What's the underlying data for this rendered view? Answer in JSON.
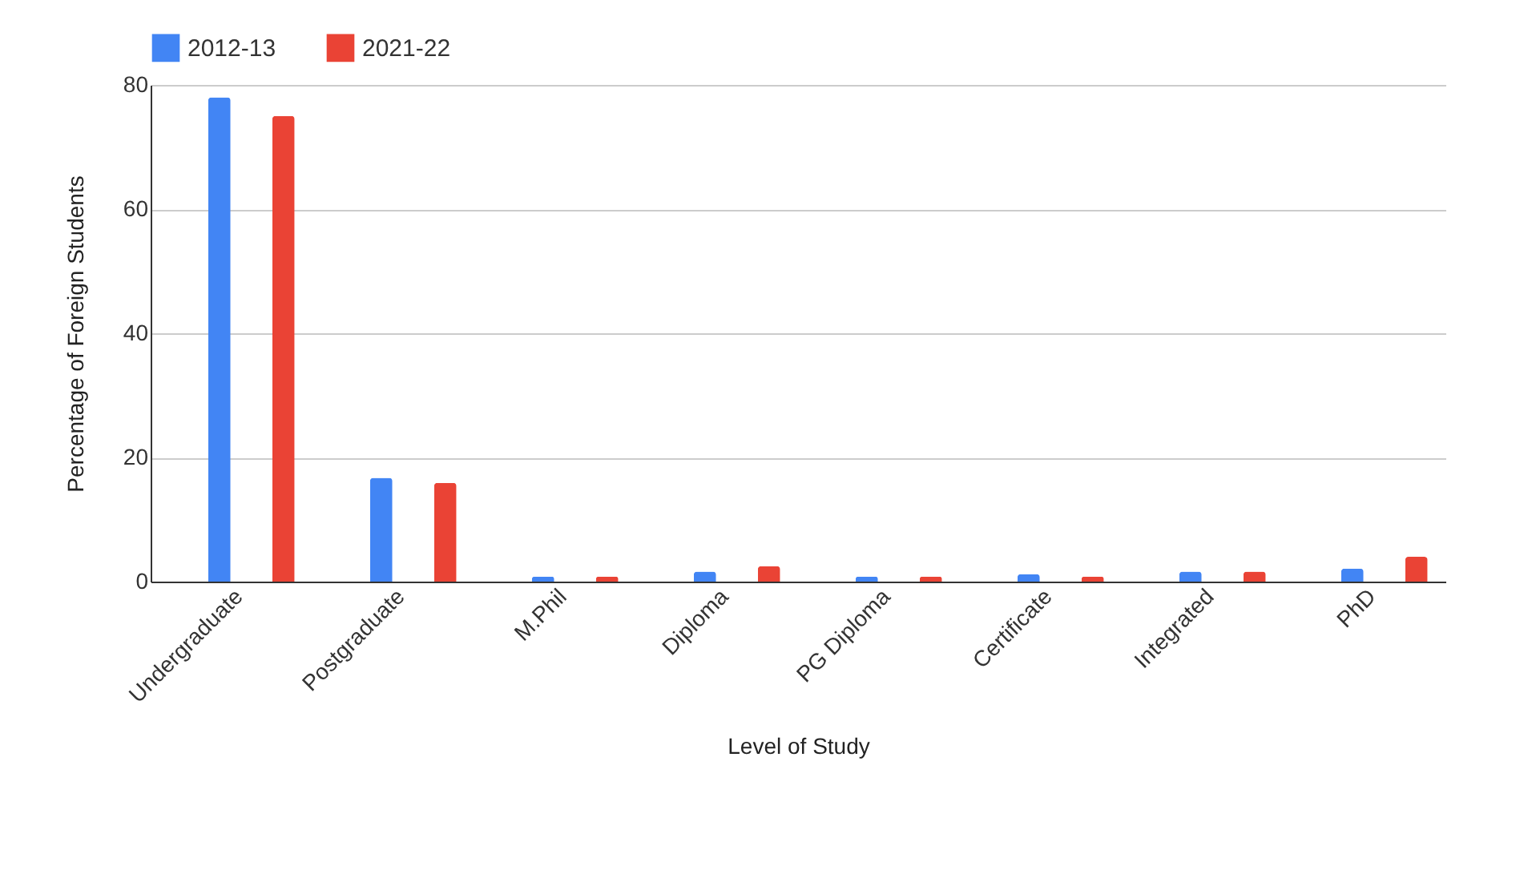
{
  "chart_data": {
    "type": "bar",
    "xlabel": "Level of Study",
    "ylabel": "Percentage of Foreign Students",
    "categories": [
      "Undergraduate",
      "Postgraduate",
      "M.Phil",
      "Diploma",
      "PG Diploma",
      "Certificate",
      "Integrated",
      "PhD"
    ],
    "series": [
      {
        "name": "2012-13",
        "color": "#4285f4",
        "values": [
          78,
          16.7,
          0.8,
          1.6,
          0.8,
          1.2,
          1.6,
          2.1
        ]
      },
      {
        "name": "2021-22",
        "color": "#ea4335",
        "values": [
          75,
          15.9,
          0.8,
          2.5,
          0.8,
          0.8,
          1.6,
          4.0
        ]
      }
    ],
    "ylim": [
      0,
      80
    ],
    "yticks": [
      0,
      20,
      40,
      60,
      80
    ],
    "grid": "y",
    "legend": "top"
  }
}
